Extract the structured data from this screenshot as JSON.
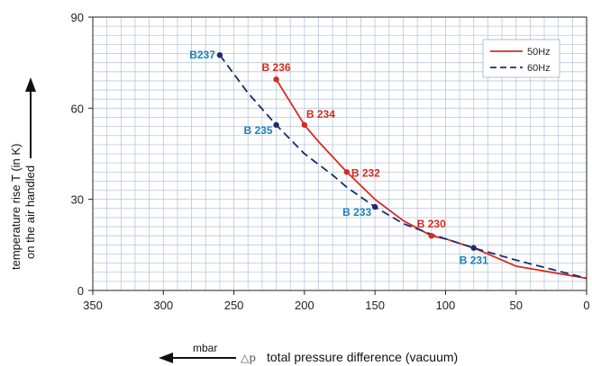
{
  "chart_data": {
    "type": "line",
    "xlabel_symbol": "△p",
    "xlabel": "total pressure difference (vacuum)",
    "xunit": "mbar",
    "ylabel_line1": "temperature rise T (in K)",
    "ylabel_line2": "on the air handled",
    "xlim": [
      350,
      0
    ],
    "ylim": [
      0,
      90
    ],
    "x_ticks": [
      350,
      300,
      250,
      200,
      150,
      100,
      50,
      0
    ],
    "y_ticks": [
      0,
      30,
      60,
      90
    ],
    "grid": true,
    "legend_position": "top-right",
    "series": [
      {
        "name": "50Hz",
        "color": "#d42b20",
        "style": "solid",
        "x": [
          220,
          210,
          200,
          190,
          170,
          150,
          130,
          110,
          100,
          80,
          50,
          0
        ],
        "y": [
          69.5,
          62,
          54.5,
          49,
          39,
          30,
          23,
          18,
          17,
          14,
          8,
          4
        ]
      },
      {
        "name": "60Hz",
        "color": "#1e2a6e",
        "style": "dashed",
        "x": [
          260,
          240,
          220,
          200,
          180,
          170,
          150,
          130,
          110,
          80,
          50,
          0
        ],
        "y": [
          77.5,
          65,
          54.5,
          45,
          38,
          34,
          27.5,
          22,
          18.5,
          14,
          10,
          4
        ]
      }
    ],
    "markers": [
      {
        "label": "B 236",
        "x": 220,
        "y": 69.5,
        "color": "#d42b20",
        "label_color": "#d42b20",
        "pos": "above"
      },
      {
        "label": "B 234",
        "x": 200,
        "y": 54.5,
        "color": "#d42b20",
        "label_color": "#d42b20",
        "pos": "right-up"
      },
      {
        "label": "B 232",
        "x": 170,
        "y": 39,
        "color": "#d42b20",
        "label_color": "#d42b20",
        "pos": "right"
      },
      {
        "label": "B 230",
        "x": 110,
        "y": 18,
        "color": "#d42b20",
        "label_color": "#d42b20",
        "pos": "above"
      },
      {
        "label": "B237",
        "x": 260,
        "y": 77.5,
        "color": "#1e2a6e",
        "label_color": "#1a7fc0",
        "pos": "left"
      },
      {
        "label": "B 235",
        "x": 220,
        "y": 54.5,
        "color": "#1e2a6e",
        "label_color": "#1a7fc0",
        "pos": "left-down"
      },
      {
        "label": "B 233",
        "x": 150,
        "y": 27.5,
        "color": "#1e2a6e",
        "label_color": "#1a7fc0",
        "pos": "left-down"
      },
      {
        "label": "B 231",
        "x": 80,
        "y": 14,
        "color": "#1e2a6e",
        "label_color": "#1a7fc0",
        "pos": "below"
      }
    ]
  }
}
